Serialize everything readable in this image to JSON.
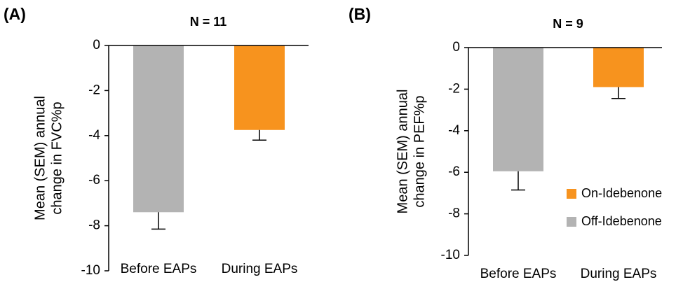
{
  "chart_data": [
    {
      "type": "bar",
      "panel_label": "(A)",
      "title": "N = 11",
      "y_label": [
        "Mean (SEM) annual",
        "change in FVC%p"
      ],
      "categories": [
        "Before EAPs",
        "During EAPs"
      ],
      "values": [
        -7.4,
        -3.75
      ],
      "errors": [
        0.75,
        0.45
      ],
      "colors": [
        "#b3b3b3",
        "#f7931e"
      ],
      "ylim": [
        -10,
        0
      ],
      "yticks": [
        0,
        -2,
        -4,
        -6,
        -8,
        -10
      ]
    },
    {
      "type": "bar",
      "panel_label": "(B)",
      "title": "N = 9",
      "y_label": [
        "Mean (SEM) annual",
        "change in PEF%p"
      ],
      "categories": [
        "Before EAPs",
        "During EAPs"
      ],
      "values": [
        -5.95,
        -1.9
      ],
      "errors": [
        0.9,
        0.55
      ],
      "colors": [
        "#b3b3b3",
        "#f7931e"
      ],
      "ylim": [
        -10,
        0
      ],
      "yticks": [
        0,
        -2,
        -4,
        -6,
        -8,
        -10
      ],
      "legend": [
        {
          "name": "On-Idebenone",
          "color": "#f7931e"
        },
        {
          "name": "Off-Idebenone",
          "color": "#b3b3b3"
        }
      ]
    }
  ]
}
